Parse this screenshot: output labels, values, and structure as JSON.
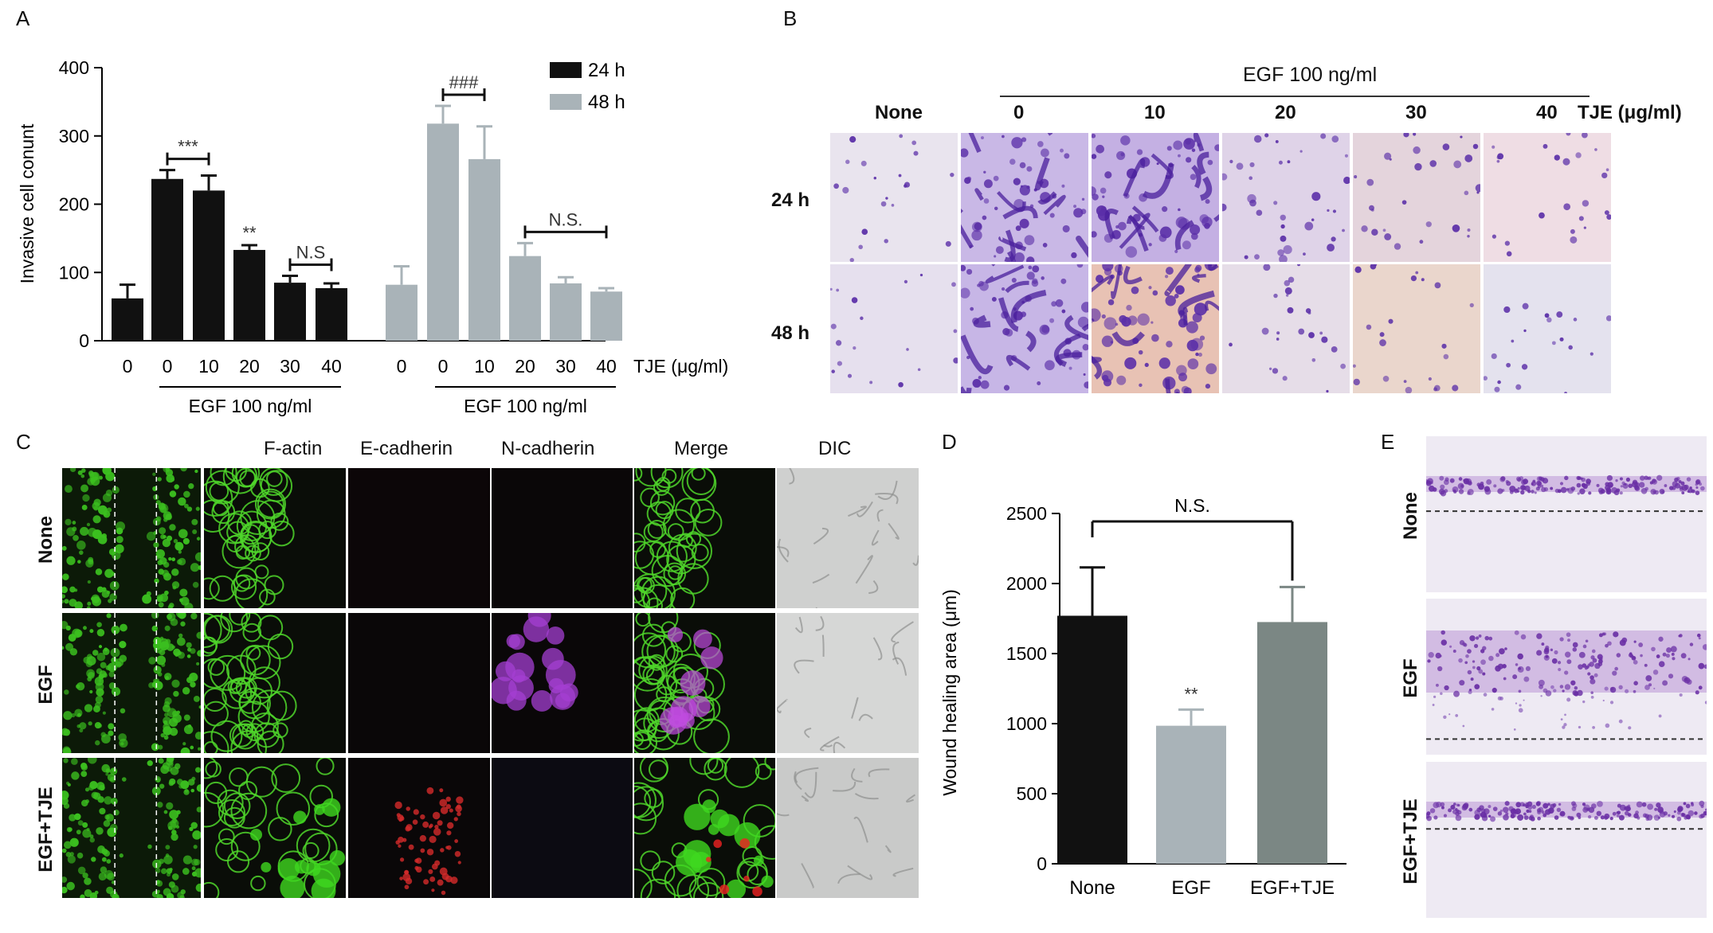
{
  "panels": {
    "a": {
      "letter": "A",
      "legend": [
        {
          "label": "24 h",
          "color": "#111111"
        },
        {
          "label": "48 h",
          "color": "#a9b3b8"
        }
      ],
      "ylabel": "Invasive cell conunt",
      "ylim": [
        0,
        400
      ],
      "yticks": [
        "0",
        "100",
        "200",
        "300",
        "400"
      ],
      "xlabel_unit": "TJE (μg/ml)",
      "egf_label": "EGF 100 ng/ml",
      "group_24": {
        "categories": [
          "0",
          "0",
          "10",
          "20",
          "30",
          "40"
        ],
        "values": [
          62,
          237,
          220,
          133,
          85,
          77
        ],
        "errors": [
          20,
          13,
          22,
          7,
          10,
          7
        ],
        "annotations": [
          {
            "text": "***",
            "type": "bracket",
            "from": 1,
            "to": 2
          },
          {
            "text": "**",
            "type": "star",
            "at": 3
          },
          {
            "text": "N.S",
            "type": "bracket",
            "from": 4,
            "to": 5
          }
        ]
      },
      "group_48": {
        "categories": [
          "0",
          "0",
          "10",
          "20",
          "30",
          "40"
        ],
        "values": [
          82,
          318,
          266,
          124,
          84,
          72
        ],
        "errors": [
          27,
          26,
          48,
          19,
          9,
          5
        ],
        "annotations": [
          {
            "text": "###",
            "type": "bracket",
            "from": 1,
            "to": 2
          },
          {
            "text": "N.S.",
            "type": "bracket",
            "from": 3,
            "to": 5
          }
        ]
      }
    },
    "b": {
      "letter": "B",
      "egf_label": "EGF 100 ng/ml",
      "columns": [
        "None",
        "0",
        "10",
        "20",
        "30",
        "40"
      ],
      "unit_label": "TJE (μg/ml)",
      "rows": [
        "24 h",
        "48 h"
      ]
    },
    "c": {
      "letter": "C",
      "columns": [
        "F-actin",
        "E-cadherin",
        "N-cadherin",
        "Merge",
        "DIC"
      ],
      "rows": [
        "None",
        "EGF",
        "EGF+TJE"
      ]
    },
    "d": {
      "letter": "D"
    },
    "e": {
      "letter": "E",
      "rows": [
        "None",
        "EGF",
        "EGF+TJE"
      ]
    }
  },
  "chart_data": [
    {
      "type": "bar",
      "panel": "A",
      "ylabel": "Invasive cell conunt",
      "ylim": [
        0,
        400
      ],
      "xlabel": "TJE (μg/ml)",
      "series": [
        {
          "name": "24 h",
          "categories": [
            "None 0",
            "EGF 0",
            "EGF 10",
            "EGF 20",
            "EGF 30",
            "EGF 40"
          ],
          "values": [
            62,
            237,
            220,
            133,
            85,
            77
          ]
        },
        {
          "name": "48 h",
          "categories": [
            "None 0",
            "EGF 0",
            "EGF 10",
            "EGF 20",
            "EGF 30",
            "EGF 40"
          ],
          "values": [
            82,
            318,
            266,
            124,
            84,
            72
          ]
        }
      ]
    },
    {
      "type": "bar",
      "panel": "D",
      "categories": [
        "None",
        "EGF",
        "EGF+TJE"
      ],
      "values": [
        1770,
        985,
        1725
      ],
      "errors": [
        345,
        115,
        250
      ],
      "colors": [
        "#111111",
        "#a9b3b8",
        "#7b8784"
      ],
      "ylabel": "Wound healing area (μm)",
      "ylim": [
        0,
        2500
      ],
      "yticks": [
        "0",
        "500",
        "1000",
        "1500",
        "2000",
        "2500"
      ],
      "annotations": [
        {
          "text": "**",
          "at": "EGF"
        },
        {
          "text": "N.S.",
          "bracket": [
            "None",
            "EGF+TJE"
          ]
        }
      ]
    }
  ]
}
